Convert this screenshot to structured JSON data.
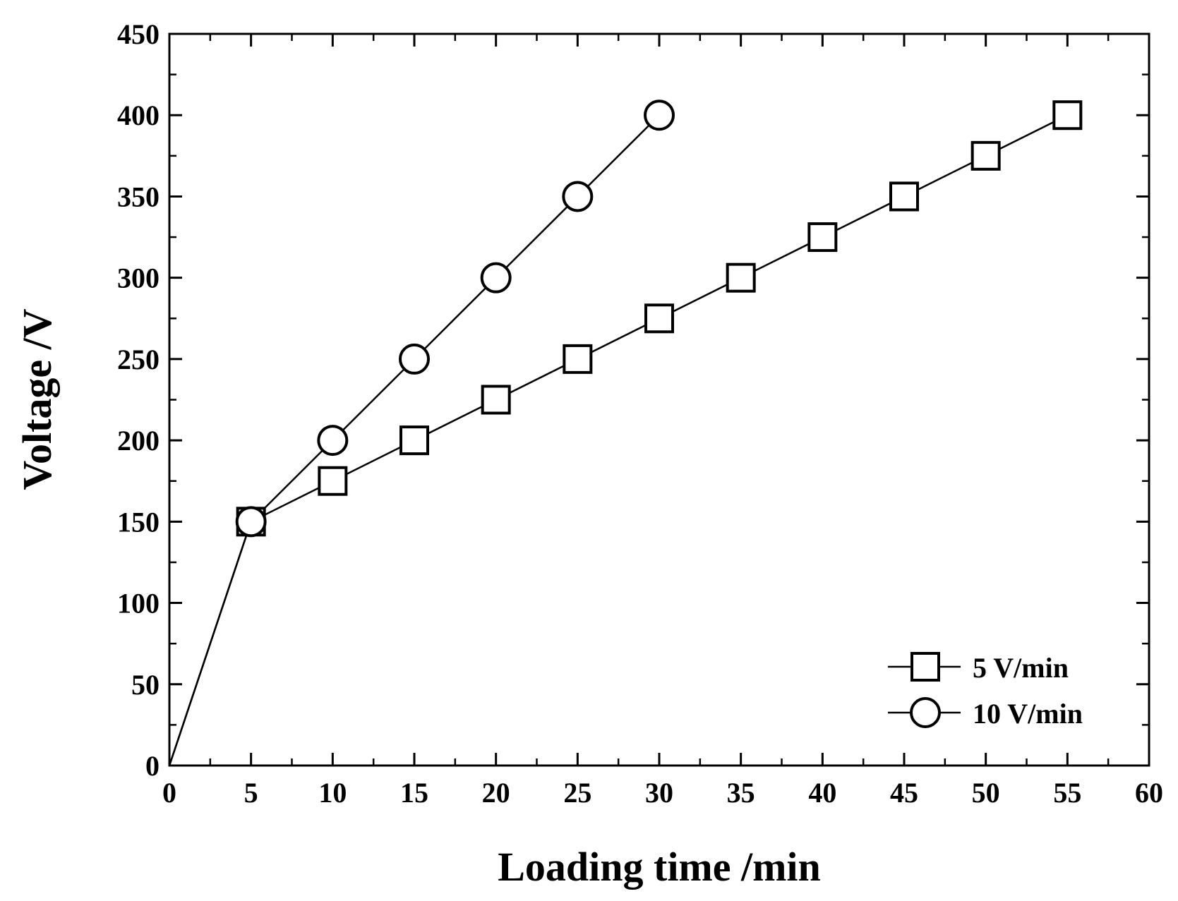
{
  "chart_data": {
    "type": "line",
    "title": "",
    "xlabel": "Loading time /min",
    "ylabel": "Voltage /V",
    "xlim": [
      0,
      60
    ],
    "ylim": [
      0,
      450
    ],
    "xticks": [
      0,
      5,
      10,
      15,
      20,
      25,
      30,
      35,
      40,
      45,
      50,
      55,
      60
    ],
    "yticks": [
      0,
      50,
      100,
      150,
      200,
      250,
      300,
      350,
      400,
      450
    ],
    "grid": false,
    "legend_position": "bottom-right",
    "series": [
      {
        "name": "5 V/min",
        "marker": "square",
        "x": [
          0,
          5,
          10,
          15,
          20,
          25,
          30,
          35,
          40,
          45,
          50,
          55
        ],
        "y": [
          0,
          150,
          175,
          200,
          225,
          250,
          275,
          300,
          325,
          350,
          375,
          400
        ]
      },
      {
        "name": "10 V/min",
        "marker": "circle",
        "x": [
          0,
          5,
          10,
          15,
          20,
          25,
          30
        ],
        "y": [
          0,
          150,
          200,
          250,
          300,
          350,
          400
        ]
      }
    ],
    "colors": {
      "line": "#000000",
      "marker_fill": "#ffffff"
    }
  }
}
